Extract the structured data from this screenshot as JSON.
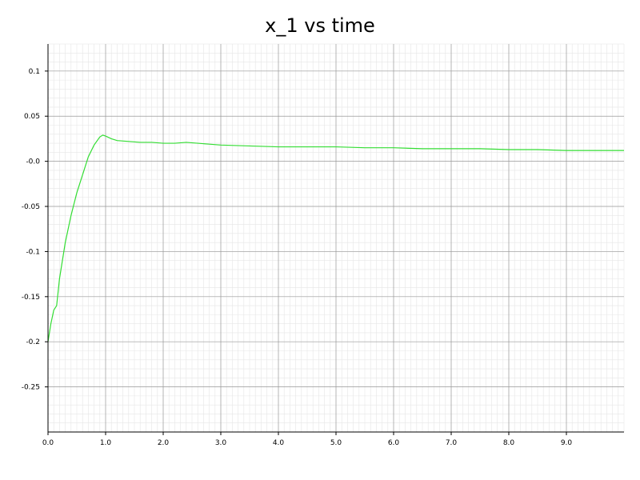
{
  "chart_data": {
    "type": "line",
    "title": "x_1 vs time",
    "xlabel": "",
    "ylabel": "",
    "xlim": [
      0,
      10
    ],
    "ylim": [
      -0.3,
      0.13
    ],
    "grid": true,
    "x_ticks": [
      0.0,
      1.0,
      2.0,
      3.0,
      4.0,
      5.0,
      6.0,
      7.0,
      8.0,
      9.0
    ],
    "x_tick_labels": [
      "0.0",
      "1.0",
      "2.0",
      "3.0",
      "4.0",
      "5.0",
      "6.0",
      "7.0",
      "8.0",
      "9.0"
    ],
    "y_ticks": [
      0.1,
      0.05,
      0.0,
      -0.05,
      -0.1,
      -0.15,
      -0.2,
      -0.25
    ],
    "y_tick_labels": [
      "0.1",
      "0.05",
      "-0.0",
      "-0.05",
      "-0.1",
      "-0.15",
      "-0.2",
      "-0.25"
    ],
    "series": [
      {
        "color": "#33dd33",
        "x": [
          0.0,
          0.05,
          0.1,
          0.15,
          0.2,
          0.3,
          0.4,
          0.5,
          0.6,
          0.7,
          0.8,
          0.9,
          0.95,
          1.0,
          1.1,
          1.2,
          1.4,
          1.6,
          1.8,
          2.0,
          2.2,
          2.4,
          2.6,
          2.8,
          3.0,
          3.5,
          4.0,
          4.5,
          5.0,
          5.5,
          6.0,
          6.5,
          7.0,
          7.5,
          8.0,
          8.5,
          9.0,
          9.5,
          10.0
        ],
        "y": [
          -0.2,
          -0.18,
          -0.165,
          -0.16,
          -0.13,
          -0.09,
          -0.06,
          -0.035,
          -0.015,
          0.005,
          0.018,
          0.027,
          0.029,
          0.028,
          0.025,
          0.023,
          0.022,
          0.021,
          0.021,
          0.02,
          0.02,
          0.021,
          0.02,
          0.019,
          0.018,
          0.017,
          0.016,
          0.016,
          0.016,
          0.015,
          0.015,
          0.014,
          0.014,
          0.014,
          0.013,
          0.013,
          0.012,
          0.012,
          0.012
        ]
      }
    ]
  }
}
